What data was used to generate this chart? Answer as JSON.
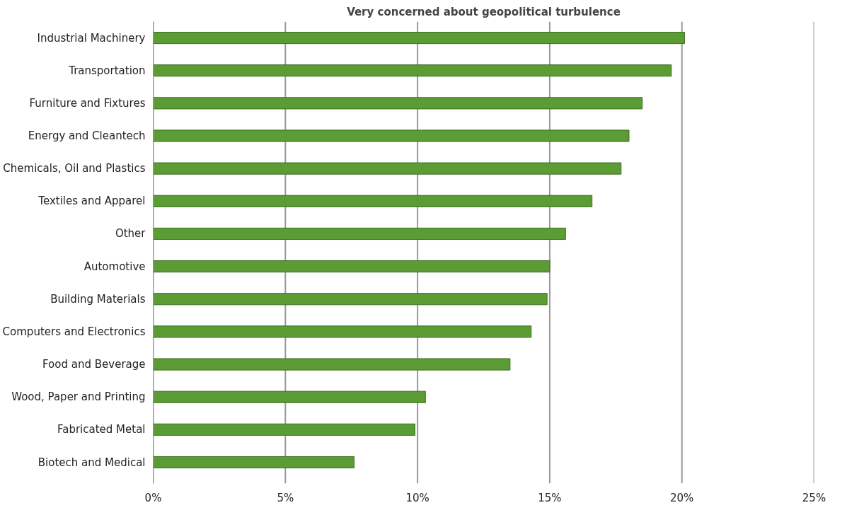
{
  "chart_data": {
    "type": "bar",
    "orientation": "horizontal",
    "title": "Very concerned about geopolitical turbulence",
    "categories": [
      "Industrial Machinery",
      "Transportation",
      "Furniture and Fixtures",
      "Energy and Cleantech",
      "Chemicals, Oil and Plastics",
      "Textiles and Apparel",
      "Other",
      "Automotive",
      "Building Materials",
      "Computers and Electronics",
      "Food and Beverage",
      "Wood, Paper and Printing",
      "Fabricated Metal",
      "Biotech and Medical"
    ],
    "values": [
      20.1,
      19.6,
      18.5,
      18.0,
      17.7,
      16.6,
      15.6,
      15.0,
      14.9,
      14.3,
      13.5,
      10.3,
      9.9,
      7.6
    ],
    "color": "#5b9c34",
    "xlim": [
      0,
      25
    ],
    "xticks": [
      {
        "value": 0,
        "label": "0%"
      },
      {
        "value": 5,
        "label": "5%"
      },
      {
        "value": 10,
        "label": "10%"
      },
      {
        "value": 15,
        "label": "15%"
      },
      {
        "value": 20,
        "label": "20%"
      },
      {
        "value": 25,
        "label": "25%"
      }
    ],
    "grid": "x"
  }
}
